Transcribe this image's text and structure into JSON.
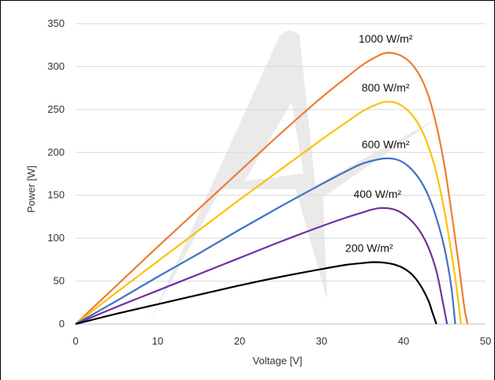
{
  "chart_data": {
    "type": "line",
    "title": "",
    "xlabel": "Voltage [V]",
    "ylabel": "Power [W]",
    "xlim": [
      0,
      50
    ],
    "ylim": [
      0,
      350
    ],
    "xticks": [
      0,
      10,
      20,
      30,
      40,
      50
    ],
    "yticks": [
      0,
      50,
      100,
      150,
      200,
      250,
      300,
      350
    ],
    "grid": "horizontal",
    "legend": "inline-labels",
    "series": [
      {
        "name": "1000 W/m²",
        "color": "#ED7D31",
        "x": [
          0,
          5,
          10,
          15,
          20,
          25,
          30,
          33,
          35,
          37,
          38,
          39,
          40,
          41,
          42,
          43,
          44,
          45,
          46,
          46.8,
          47.4,
          47.8
        ],
        "y": [
          0,
          45,
          90,
          134,
          178,
          222,
          264,
          287,
          302,
          313,
          316,
          315,
          311,
          303,
          289,
          267,
          232,
          184,
          120,
          65,
          20,
          0
        ]
      },
      {
        "name": "800 W/m²",
        "color": "#FFC000",
        "x": [
          0,
          5,
          10,
          15,
          20,
          25,
          30,
          33,
          35,
          37,
          38,
          39,
          40,
          41,
          42,
          43,
          44,
          45,
          45.8,
          46.5,
          47.0
        ],
        "y": [
          0,
          37,
          73,
          109,
          145,
          180,
          215,
          235,
          248,
          257,
          259,
          258,
          253,
          244,
          230,
          208,
          176,
          131,
          85,
          40,
          0
        ]
      },
      {
        "name": "600 W/m²",
        "color": "#4472C4",
        "x": [
          0,
          5,
          10,
          15,
          20,
          25,
          30,
          33,
          35,
          37,
          38,
          39,
          40,
          41,
          42,
          43,
          44,
          45,
          45.8,
          46.3
        ],
        "y": [
          0,
          27,
          55,
          82,
          110,
          137,
          163,
          178,
          187,
          192,
          193,
          192,
          188,
          180,
          168,
          150,
          124,
          88,
          45,
          0
        ]
      },
      {
        "name": "400 W/m²",
        "color": "#7030A0",
        "x": [
          0,
          5,
          10,
          15,
          20,
          25,
          30,
          33,
          35,
          36,
          37,
          38,
          39,
          40,
          41,
          42,
          43,
          44,
          44.8,
          45.3
        ],
        "y": [
          0,
          20,
          39,
          58,
          77,
          96,
          114,
          124,
          130,
          133,
          135,
          135,
          133,
          128,
          120,
          108,
          90,
          62,
          25,
          0
        ]
      },
      {
        "name": "200 W/m²",
        "color": "#000000",
        "x": [
          0,
          5,
          10,
          15,
          20,
          25,
          30,
          33,
          35,
          36,
          37,
          38,
          39,
          40,
          41,
          42,
          43,
          43.5,
          44
        ],
        "y": [
          0,
          12,
          23,
          34,
          45,
          55,
          64,
          69,
          71,
          72,
          72,
          71,
          69,
          65,
          58,
          46,
          28,
          14,
          0
        ]
      }
    ]
  }
}
